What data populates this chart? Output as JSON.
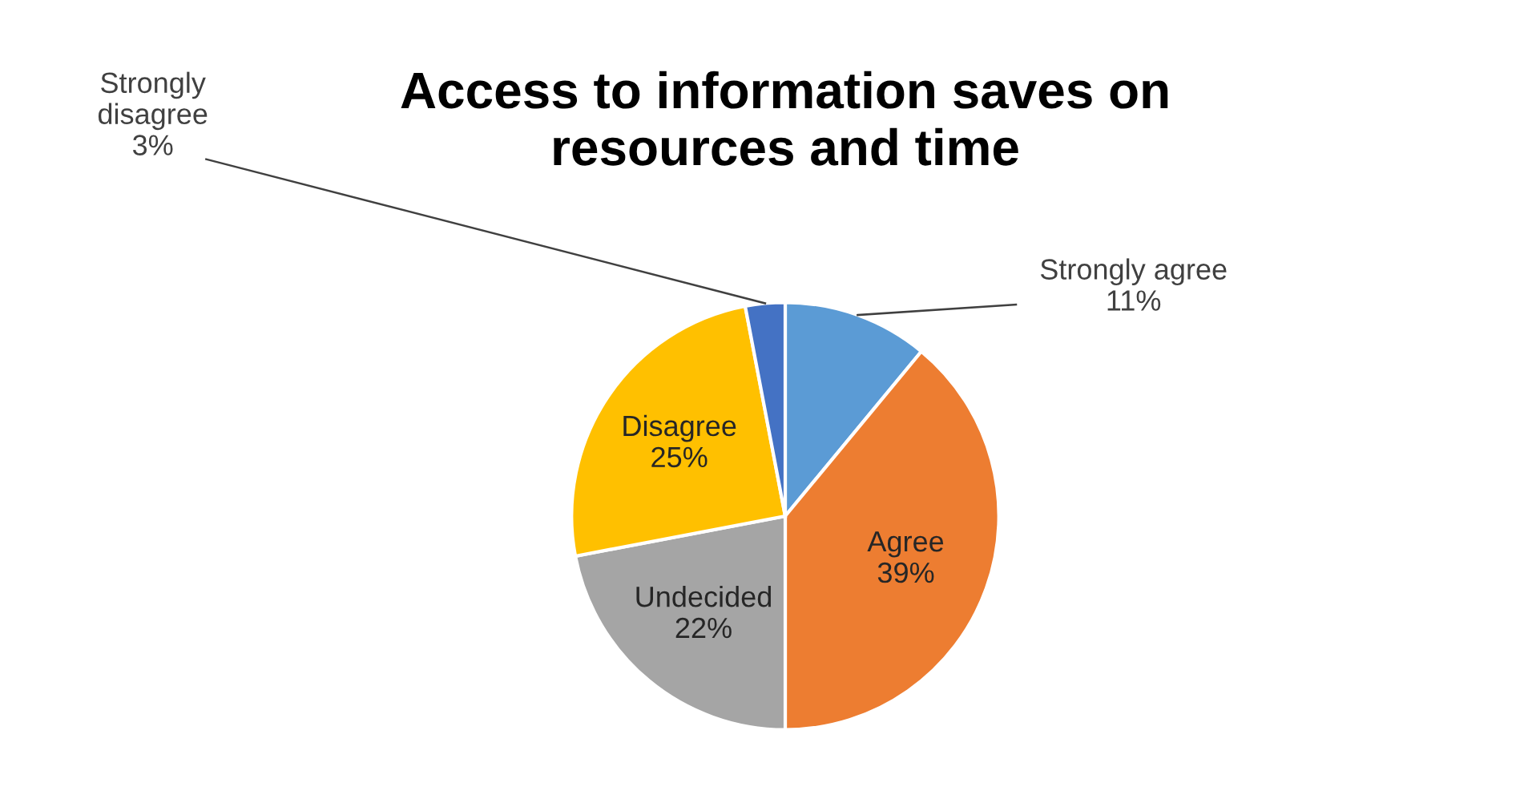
{
  "chart_data": {
    "type": "pie",
    "title": "Access to information saves on\nresources and time",
    "categories": [
      "Strongly agree",
      "Agree",
      "Undecided",
      "Disagree",
      "Strongly\ndisagree"
    ],
    "values": [
      11,
      39,
      22,
      25,
      3
    ],
    "colors": [
      "#5b9bd5",
      "#ed7d31",
      "#a5a5a5",
      "#ffc000",
      "#4472c4"
    ],
    "value_labels": [
      "11%",
      "39%",
      "22%",
      "25%",
      "3%"
    ],
    "legend": false
  }
}
